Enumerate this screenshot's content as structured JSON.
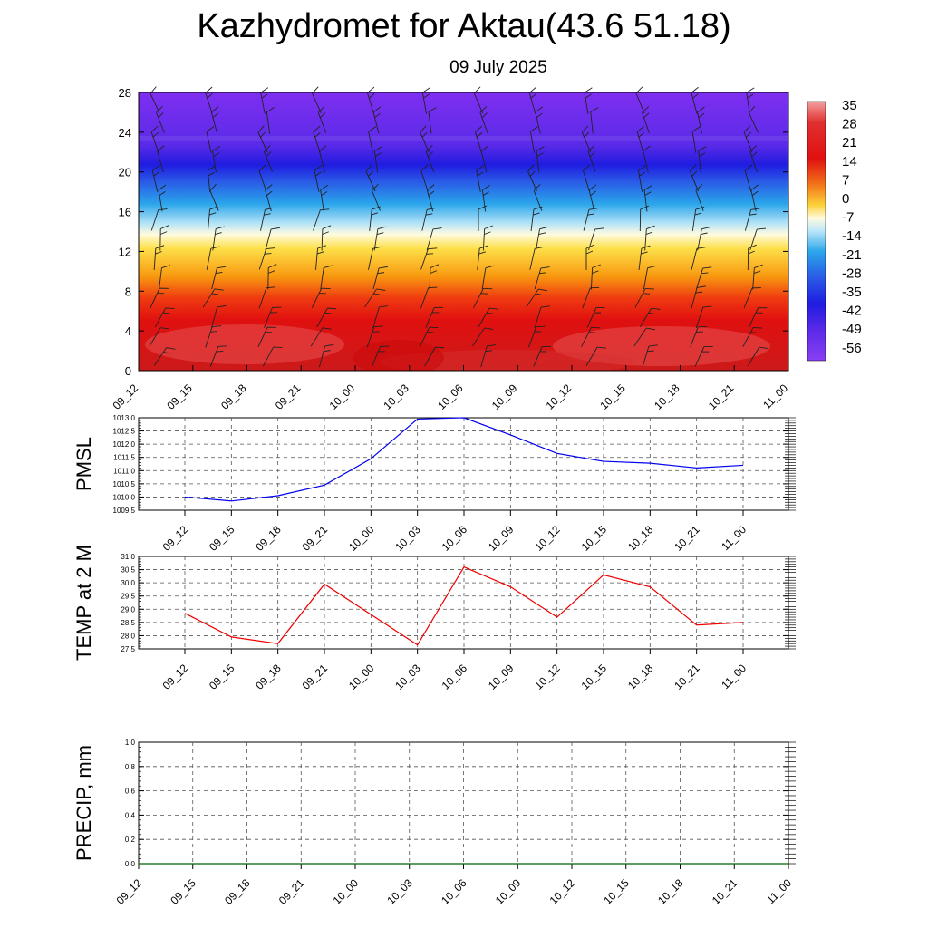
{
  "title": "Kazhydromet for Aktau(43.6 51.18)",
  "subtitle": "09 July 2025",
  "colors": {
    "pmsl_line": "#0000ee",
    "temp_line": "#ee0000",
    "precip_line": "#006400"
  },
  "chart_data": [
    {
      "type": "heatmap",
      "title": "Kazhydromet for Aktau(43.6 51.18)",
      "subtitle": "09 July 2025",
      "x_ticks": [
        "09_12",
        "09_15",
        "09_18",
        "09_21",
        "10_00",
        "10_03",
        "10_06",
        "10_09",
        "10_12",
        "10_15",
        "10_18",
        "10_21",
        "11_00"
      ],
      "y_ticks": [
        0,
        4,
        8,
        12,
        16,
        20,
        24,
        28
      ],
      "ylim": [
        0,
        28
      ],
      "colorbar_labels": [
        "35",
        "28",
        "21",
        "14",
        "7",
        "0",
        "-7",
        "-14",
        "-21",
        "-28",
        "-35",
        "-42",
        "-49",
        "-56"
      ],
      "colorbar_range": [
        -60,
        38
      ],
      "legend_position": "right",
      "overlay": "wind barbs"
    },
    {
      "type": "line",
      "ylabel": "PMSL",
      "x": [
        "09_12",
        "09_15",
        "09_18",
        "09_21",
        "10_00",
        "10_03",
        "10_06",
        "10_09",
        "10_12",
        "10_15",
        "10_18",
        "10_21",
        "11_00"
      ],
      "values": [
        1010.0,
        1009.85,
        1010.05,
        1010.45,
        1011.45,
        1012.95,
        1013.0,
        1012.35,
        1011.65,
        1011.35,
        1011.28,
        1011.1,
        1011.2
      ],
      "ylim": [
        1009.5,
        1013.0
      ],
      "y_ticks": [
        "1009.5",
        "1010.0",
        "1010.5",
        "1011.0",
        "1011.5",
        "1012.0",
        "1012.5",
        "1013.0"
      ],
      "grid": true
    },
    {
      "type": "line",
      "ylabel": "TEMP at 2 M",
      "x": [
        "09_12",
        "09_15",
        "09_18",
        "09_21",
        "10_00",
        "10_03",
        "10_06",
        "10_09",
        "10_12",
        "10_15",
        "10_18",
        "10_21",
        "11_00"
      ],
      "values": [
        28.85,
        27.95,
        27.7,
        29.95,
        28.8,
        27.65,
        30.6,
        29.85,
        28.7,
        30.3,
        29.85,
        28.4,
        28.5
      ],
      "ylim": [
        27.5,
        31.0
      ],
      "y_ticks": [
        "27.5",
        "28.0",
        "28.5",
        "29.0",
        "29.5",
        "30.0",
        "30.5",
        "31.0"
      ],
      "grid": true
    },
    {
      "type": "line",
      "ylabel": "PRECIP, mm",
      "x_ticks": [
        "09_12",
        "09_15",
        "09_18",
        "09_21",
        "10_00",
        "10_03",
        "10_06",
        "10_09",
        "10_12",
        "10_15",
        "10_18",
        "10_21",
        "11_00"
      ],
      "values": [
        0,
        0,
        0,
        0,
        0,
        0,
        0,
        0,
        0,
        0,
        0,
        0,
        0
      ],
      "ylim": [
        0,
        1.0
      ],
      "y_ticks": [
        "0.0",
        "0.2",
        "0.4",
        "0.6",
        "0.8",
        "1.0"
      ],
      "grid": true
    }
  ]
}
